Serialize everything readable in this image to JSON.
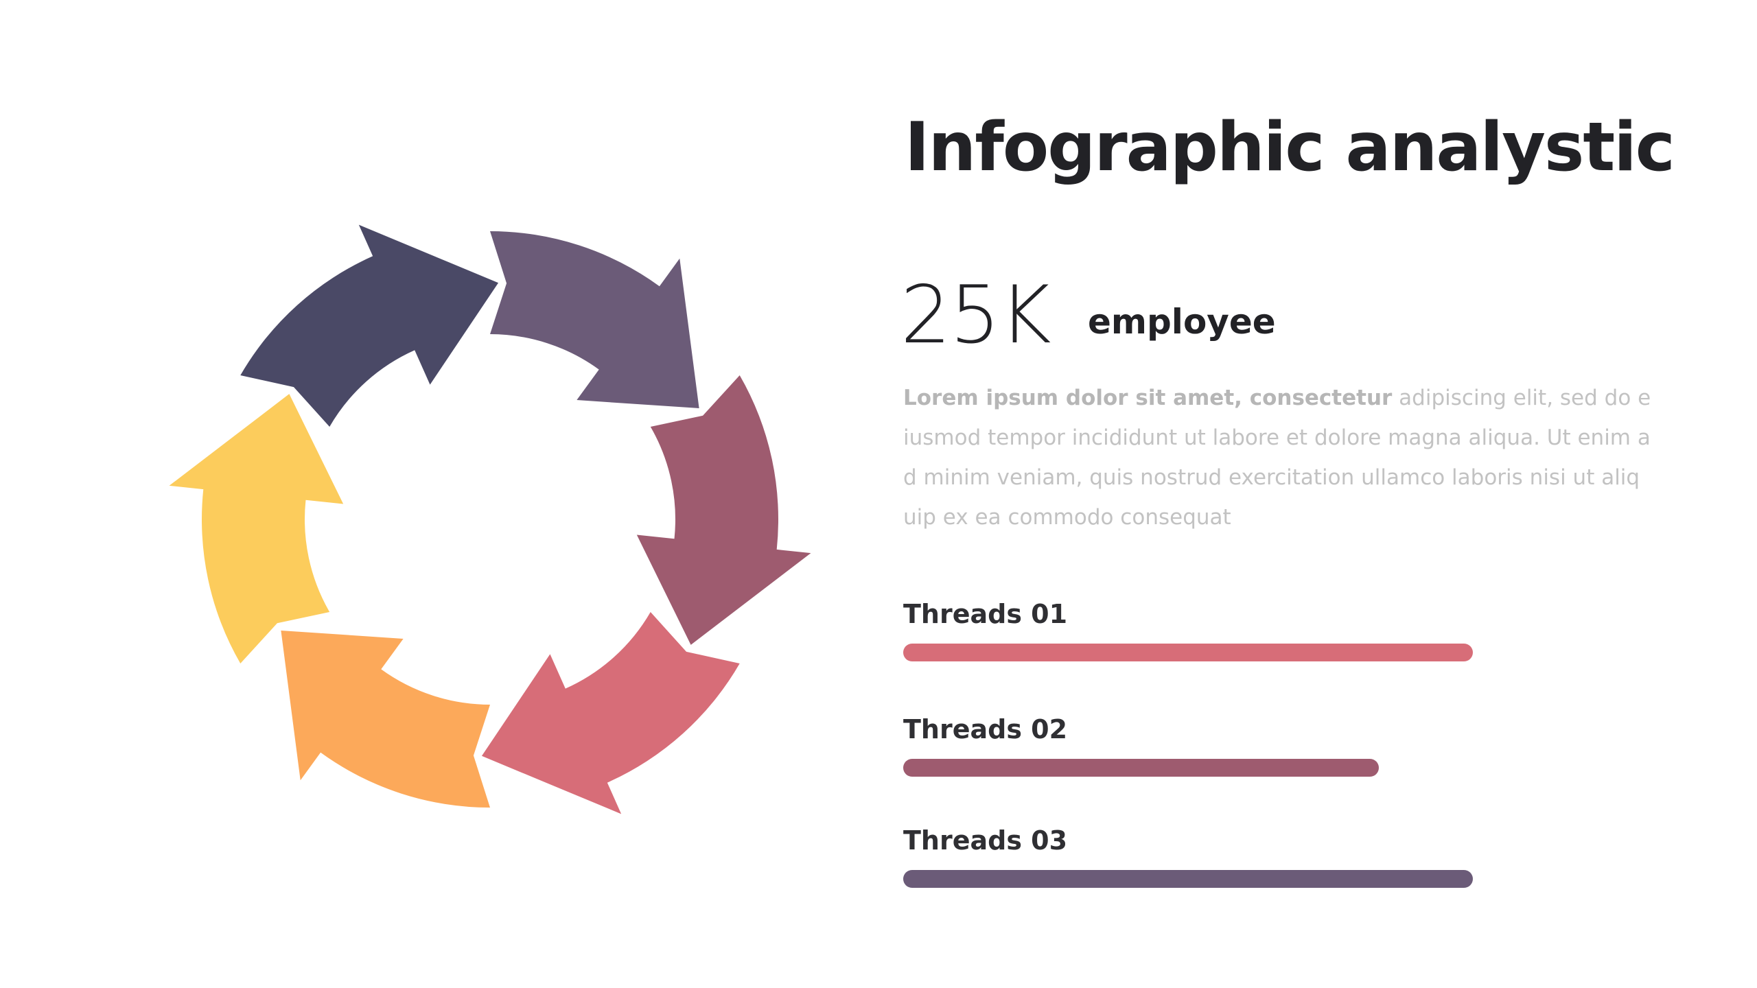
{
  "title": "Infographic analystic",
  "stat": {
    "value": "25K",
    "label": "employee"
  },
  "description": {
    "lead": "Lorem ipsum dolor sit amet, consectetur",
    "body": " adipiscing elit, sed do eiusmod tempor incididunt ut labore et dolore magna aliqua. Ut enim ad minim veniam, quis nostrud exercitation ullamco laboris nisi ut aliquip ex ea commodo consequat"
  },
  "threads": [
    {
      "label": "Threads 01",
      "progress": 1.0,
      "color": "#d76d78"
    },
    {
      "label": "Threads 02",
      "progress": 0.835,
      "color": "#9e5b6f"
    },
    {
      "label": "Threads 03",
      "progress": 1.0,
      "color": "#6b5b78"
    }
  ],
  "cycle": {
    "segments": [
      {
        "name": "top",
        "color": "#6b5b78"
      },
      {
        "name": "right-upper",
        "color": "#9e5b6f"
      },
      {
        "name": "right-lower",
        "color": "#d76d78"
      },
      {
        "name": "bottom",
        "color": "#fca95a"
      },
      {
        "name": "left-lower",
        "color": "#fccc5c"
      },
      {
        "name": "left-upper",
        "color": "#4a4966"
      }
    ]
  }
}
